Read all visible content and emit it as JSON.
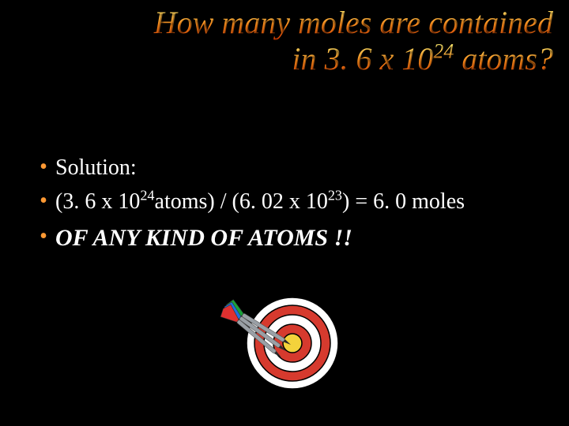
{
  "title": {
    "line1": "How many moles are contained",
    "line2_a": "in 3. 6 x 10",
    "line2_exp": "24",
    "line2_b": " atoms?",
    "gradient_start": "#ffff80",
    "gradient_mid": "#ff8c1a",
    "gradient_end": "#cc3300",
    "font_size": 40,
    "italic": true
  },
  "bullets": [
    {
      "kind": "plain",
      "text": "Solution:"
    },
    {
      "kind": "eq",
      "p1": "(3. 6 x 10",
      "e1": "24",
      "p2": "atoms) / (6. 02 x 10",
      "e2": "23",
      "p3": ") = 6. 0 moles"
    },
    {
      "kind": "emph",
      "text": "OF ANY KIND OF ATOMS !!"
    }
  ],
  "colors": {
    "background": "#000000",
    "body_text": "#ffffff",
    "bullet_dot": "#ff9933"
  },
  "dartboard": {
    "rings": [
      {
        "r": 58,
        "fill": "#ffffff"
      },
      {
        "r": 48,
        "fill": "#d63a2e"
      },
      {
        "r": 36,
        "fill": "#ffffff"
      },
      {
        "r": 24,
        "fill": "#d63a2e"
      },
      {
        "r": 12,
        "fill": "#f3d23b"
      }
    ],
    "ring_stroke": "#000000",
    "dart_shaft": "#9aa0a6",
    "dart_tip": "#2b2b2b",
    "fletch_colors": [
      "#19a23a",
      "#1f6fe0",
      "#e03030"
    ]
  }
}
